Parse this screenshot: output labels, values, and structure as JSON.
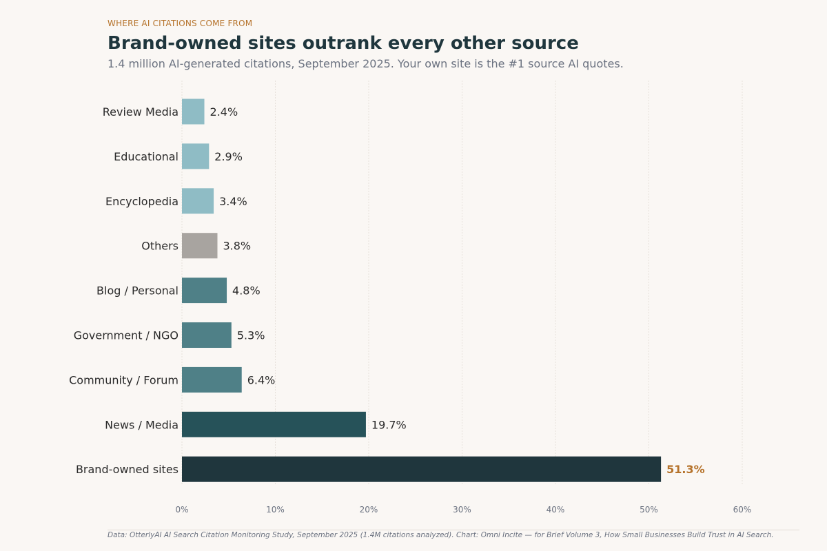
{
  "kicker": "WHERE AI CITATIONS COME FROM",
  "chart_data": {
    "type": "bar",
    "orientation": "horizontal",
    "title": "Brand-owned sites outrank every other source",
    "subtitle": "1.4 million AI-generated citations, September 2025. Your own site is the #1 source AI quotes.",
    "categories": [
      "Review Media",
      "Educational",
      "Encyclopedia",
      "Others",
      "Blog / Personal",
      "Government / NGO",
      "Community / Forum",
      "News / Media",
      "Brand-owned sites"
    ],
    "values": [
      2.4,
      2.9,
      3.4,
      3.8,
      4.8,
      5.3,
      6.4,
      19.7,
      51.3
    ],
    "value_labels": [
      "2.4%",
      "2.9%",
      "3.4%",
      "3.8%",
      "4.8%",
      "5.3%",
      "6.4%",
      "19.7%",
      "51.3%"
    ],
    "colors": [
      "#8fbcc5",
      "#8fbcc5",
      "#8fbcc5",
      "#a8a4a0",
      "#4f8087",
      "#4f8087",
      "#4f8087",
      "#265259",
      "#1f363d"
    ],
    "highlight_label_color": "#b5722a",
    "xlim": [
      0,
      60
    ],
    "xticks": [
      0,
      10,
      20,
      30,
      40,
      50,
      60
    ],
    "xtick_labels": [
      "0%",
      "10%",
      "20%",
      "30%",
      "40%",
      "50%",
      "60%"
    ],
    "grid": "vertical dashed",
    "xlabel": "",
    "ylabel": ""
  },
  "footer": "Data: OtterlyAI AI Search Citation Monitoring Study, September 2025 (1.4M citations analyzed).  Chart: Omni Incite — for Brief Volume 3, How Small Businesses Build Trust in AI Search."
}
